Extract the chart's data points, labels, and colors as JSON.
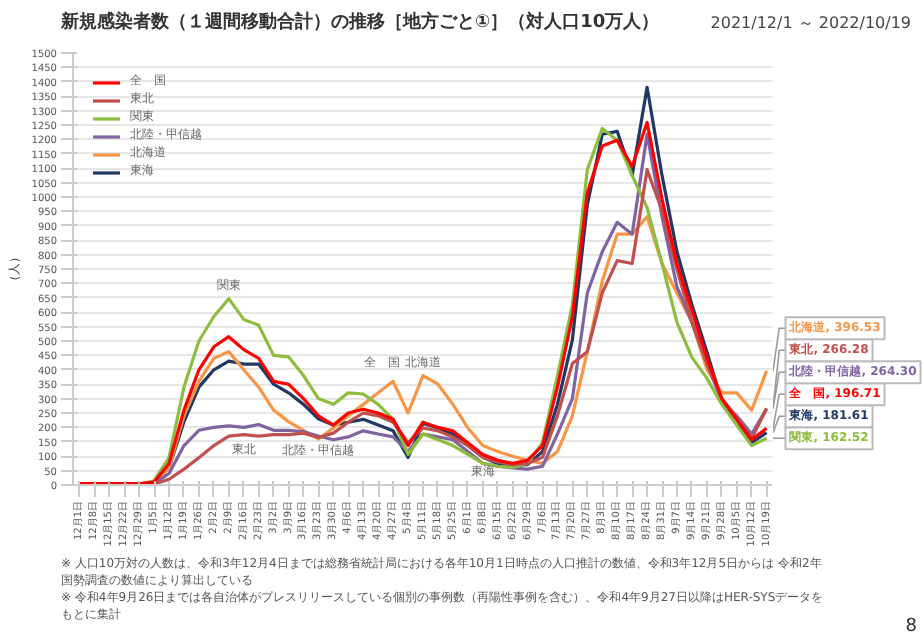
{
  "chart_data": {
    "type": "line",
    "title": "新規感染者数（１週間移動合計）の推移［地方ごと①］（対人口10万人）",
    "subtitle": "2021/12/1 ～ 2022/10/19",
    "ylabel": "（人）",
    "x": [
      "2021-12-01",
      "2021-12-08",
      "2021-12-15",
      "2021-12-22",
      "2021-12-29",
      "2022-01-05",
      "2022-01-12",
      "2022-01-19",
      "2022-01-26",
      "2022-02-02",
      "2022-02-09",
      "2022-02-16",
      "2022-02-23",
      "2022-03-02",
      "2022-03-09",
      "2022-03-16",
      "2022-03-23",
      "2022-03-30",
      "2022-04-06",
      "2022-04-13",
      "2022-04-20",
      "2022-04-27",
      "2022-05-04",
      "2022-05-11",
      "2022-05-18",
      "2022-05-25",
      "2022-06-01",
      "2022-06-08",
      "2022-06-15",
      "2022-06-22",
      "2022-06-29",
      "2022-07-06",
      "2022-07-13",
      "2022-07-20",
      "2022-07-27",
      "2022-08-03",
      "2022-08-10",
      "2022-08-17",
      "2022-08-24",
      "2022-08-31",
      "2022-09-07",
      "2022-09-14",
      "2022-09-21",
      "2022-09-28",
      "2022-10-05",
      "2022-10-12",
      "2022-10-19"
    ],
    "series": [
      {
        "name": "全　国",
        "color": "#ff0000",
        "values": [
          5,
          5,
          5,
          5,
          5,
          10,
          75,
          260,
          400,
          480,
          515,
          470,
          440,
          360,
          350,
          300,
          240,
          208,
          250,
          263,
          250,
          228,
          137,
          218,
          200,
          188,
          147,
          106,
          86,
          75,
          86,
          137,
          340,
          585,
          1014,
          1177,
          1197,
          1106,
          1259,
          993,
          769,
          606,
          443,
          300,
          228,
          157,
          196.71
        ]
      },
      {
        "name": "東北",
        "color": "#c0504d",
        "values": [
          null,
          null,
          null,
          null,
          1,
          3,
          20,
          55,
          95,
          137,
          170,
          175,
          170,
          175,
          175,
          180,
          165,
          180,
          218,
          250,
          240,
          218,
          147,
          198,
          188,
          167,
          137,
          96,
          80,
          71,
          75,
          96,
          240,
          422,
          463,
          667,
          779,
          769,
          1095,
          953,
          749,
          565,
          422,
          300,
          234,
          161,
          266.28
        ]
      },
      {
        "name": "関東",
        "color": "#8cbd3f",
        "values": [
          null,
          null,
          null,
          null,
          2,
          15,
          95,
          340,
          500,
          585,
          647,
          575,
          555,
          450,
          445,
          380,
          300,
          280,
          320,
          316,
          280,
          228,
          106,
          177,
          157,
          137,
          106,
          75,
          65,
          61,
          75,
          147,
          380,
          626,
          1095,
          1238,
          1197,
          1075,
          963,
          769,
          565,
          443,
          371,
          280,
          208,
          137,
          162.52
        ]
      },
      {
        "name": "北陸・甲信越",
        "color": "#8064a2",
        "values": [
          null,
          null,
          null,
          null,
          1,
          5,
          40,
          137,
          190,
          200,
          205,
          200,
          210,
          190,
          190,
          185,
          170,
          157,
          167,
          188,
          177,
          167,
          116,
          177,
          167,
          157,
          116,
          75,
          65,
          59,
          55,
          65,
          177,
          300,
          667,
          810,
          912,
          871,
          1218,
          932,
          688,
          565,
          422,
          290,
          240,
          177,
          264.3
        ]
      },
      {
        "name": "北海道",
        "color": "#f79646",
        "values": [
          null,
          null,
          null,
          null,
          2,
          8,
          60,
          240,
          360,
          440,
          463,
          400,
          340,
          260,
          220,
          190,
          160,
          198,
          240,
          280,
          320,
          360,
          250,
          380,
          350,
          280,
          198,
          137,
          116,
          100,
          86,
          75,
          116,
          240,
          463,
          708,
          871,
          871,
          932,
          769,
          667,
          565,
          402,
          320,
          320,
          260,
          396.53
        ]
      },
      {
        "name": "東海",
        "color": "#1f3864",
        "values": [
          null,
          null,
          null,
          null,
          1,
          8,
          60,
          220,
          340,
          400,
          430,
          420,
          420,
          350,
          320,
          280,
          230,
          208,
          218,
          228,
          208,
          188,
          96,
          214,
          198,
          177,
          137,
          96,
          75,
          69,
          71,
          116,
          280,
          504,
          973,
          1218,
          1228,
          1075,
          1381,
          1075,
          810,
          626,
          463,
          290,
          228,
          147,
          181.61
        ]
      }
    ],
    "ylim": [
      0,
      1500
    ],
    "yticks": [
      0,
      50,
      100,
      150,
      200,
      250,
      300,
      350,
      400,
      450,
      500,
      550,
      600,
      650,
      700,
      750,
      800,
      850,
      900,
      950,
      1000,
      1050,
      1100,
      1150,
      1200,
      1250,
      1300,
      1350,
      1400,
      1450,
      1500
    ],
    "xlim": [
      "2021-11-28",
      "2022-10-22"
    ],
    "xticks": [
      {
        "value": "2021-12-01",
        "label": "12月1日"
      },
      {
        "value": "2021-12-08",
        "label": "12月8日"
      },
      {
        "value": "2021-12-15",
        "label": "12月15日"
      },
      {
        "value": "2021-12-22",
        "label": "12月22日"
      },
      {
        "value": "2021-12-29",
        "label": "12月29日"
      },
      {
        "value": "2022-01-05",
        "label": "1月5日"
      },
      {
        "value": "2022-01-12",
        "label": "1月12日"
      },
      {
        "value": "2022-01-19",
        "label": "1月19日"
      },
      {
        "value": "2022-01-26",
        "label": "1月26日"
      },
      {
        "value": "2022-02-02",
        "label": "2月2日"
      },
      {
        "value": "2022-02-09",
        "label": "2月9日"
      },
      {
        "value": "2022-02-16",
        "label": "2月16日"
      },
      {
        "value": "2022-02-23",
        "label": "2月23日"
      },
      {
        "value": "2022-03-02",
        "label": "3月2日"
      },
      {
        "value": "2022-03-09",
        "label": "3月9日"
      },
      {
        "value": "2022-03-16",
        "label": "3月16日"
      },
      {
        "value": "2022-03-23",
        "label": "3月23日"
      },
      {
        "value": "2022-03-30",
        "label": "3月30日"
      },
      {
        "value": "2022-04-06",
        "label": "4月6日"
      },
      {
        "value": "2022-04-13",
        "label": "4月13日"
      },
      {
        "value": "2022-04-20",
        "label": "4月20日"
      },
      {
        "value": "2022-04-27",
        "label": "4月27日"
      },
      {
        "value": "2022-05-04",
        "label": "5月4日"
      },
      {
        "value": "2022-05-11",
        "label": "5月11日"
      },
      {
        "value": "2022-05-18",
        "label": "5月18日"
      },
      {
        "value": "2022-05-25",
        "label": "5月25日"
      },
      {
        "value": "2022-06-01",
        "label": "6月1日"
      },
      {
        "value": "2022-06-08",
        "label": "6月8日"
      },
      {
        "value": "2022-06-15",
        "label": "6月15日"
      },
      {
        "value": "2022-06-22",
        "label": "6月22日"
      },
      {
        "value": "2022-06-29",
        "label": "6月29日"
      },
      {
        "value": "2022-07-06",
        "label": "7月6日"
      },
      {
        "value": "2022-07-13",
        "label": "7月13日"
      },
      {
        "value": "2022-07-20",
        "label": "7月20日"
      },
      {
        "value": "2022-07-27",
        "label": "7月27日"
      },
      {
        "value": "2022-08-03",
        "label": "8月3日"
      },
      {
        "value": "2022-08-10",
        "label": "8月10日"
      },
      {
        "value": "2022-08-17",
        "label": "8月17日"
      },
      {
        "value": "2022-08-24",
        "label": "8月24日"
      },
      {
        "value": "2022-08-31",
        "label": "8月31日"
      },
      {
        "value": "2022-09-07",
        "label": "9月7日"
      },
      {
        "value": "2022-09-14",
        "label": "9月14日"
      },
      {
        "value": "2022-09-21",
        "label": "9月21日"
      },
      {
        "value": "2022-09-28",
        "label": "9月28日"
      },
      {
        "value": "2022-10-05",
        "label": "10月5日"
      },
      {
        "value": "2022-10-12",
        "label": "10月12日"
      },
      {
        "value": "2022-10-19",
        "label": "10月19日"
      }
    ],
    "grid": "y",
    "legend": "top left",
    "line_style": "solid",
    "annotations": [
      {
        "text": "関東",
        "x": "2022-02-09",
        "y": 647
      },
      {
        "text": "全　国",
        "x": "2022-04-22",
        "y": 379
      },
      {
        "text": "北海道",
        "x": "2022-05-11",
        "y": 380
      },
      {
        "text": "東北",
        "x": "2022-02-16",
        "y": 175
      },
      {
        "text": "北陸・甲信越",
        "x": "2022-03-23",
        "y": 170
      },
      {
        "text": "東海",
        "x": "2022-06-08",
        "y": 96
      },
      {
        "text": "北海道, 396.53",
        "x": "2022-10-19",
        "y": 396.53
      },
      {
        "text": "東北, 266.28",
        "x": "2022-10-19",
        "y": 266.28
      },
      {
        "text": "北陸・甲信越, 264.30",
        "x": "2022-10-19",
        "y": 264.3
      },
      {
        "text": "全　国, 196.71",
        "x": "2022-10-19",
        "y": 196.71
      },
      {
        "text": "東海, 181.61",
        "x": "2022-10-19",
        "y": 181.61
      },
      {
        "text": "関東, 162.52",
        "x": "2022-10-19",
        "y": 162.52
      },
      "※ 人口10万対の人数は、令和3年12月4日までは総務省統計局における各年10月1日時点の人口推計の数値、令和3年12月5日からは 令和2年国勢調査の数値により算出している",
      "※ 令和4年9月26日までは各自治体がプレスリリースしている個別の事例数（再陽性事例を含む）、令和4年9月27日以降はHER-SYSデータをもとに集計",
      "8"
    ]
  }
}
